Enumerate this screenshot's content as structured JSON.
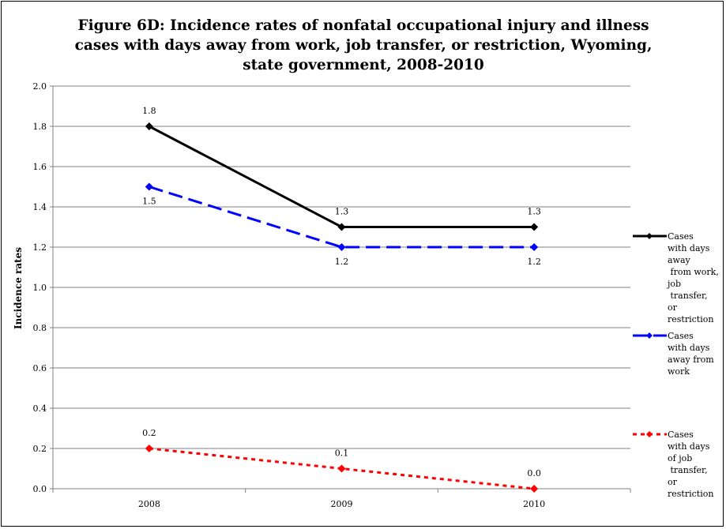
{
  "chart_data": {
    "type": "line",
    "title_lines": [
      "Figure 6D: Incidence rates of nonfatal occupational injury and illness",
      "cases with days away from work, job transfer, or restriction, Wyoming,",
      "state government, 2008-2010"
    ],
    "ylabel": "Incidence rates",
    "xlabel": "",
    "categories": [
      "2008",
      "2009",
      "2010"
    ],
    "ylim": [
      0,
      2.0
    ],
    "yticks": [
      "0.0",
      "0.2",
      "0.4",
      "0.6",
      "0.8",
      "1.0",
      "1.2",
      "1.4",
      "1.6",
      "1.8",
      "2.0"
    ],
    "grid": true,
    "legend_position": "right",
    "series": [
      {
        "name": "Cases with days away from work, job transfer, or restriction",
        "legend_lines": "Cases\nwith days\naway\n from work,\njob\n transfer,\nor\nrestriction",
        "values": [
          1.8,
          1.3,
          1.3
        ],
        "labels": [
          "1.8",
          "1.3",
          "1.3"
        ],
        "color": "#000000",
        "dash": "solid"
      },
      {
        "name": "Cases with days away from work",
        "legend_lines": "Cases\nwith days\naway from\nwork",
        "values": [
          1.5,
          1.2,
          1.2
        ],
        "labels": [
          "1.5",
          "1.2",
          "1.2"
        ],
        "color": "#0000ff",
        "dash": "dashed"
      },
      {
        "name": "Cases with days of job transfer, or restriction",
        "legend_lines": "Cases\nwith days\nof job\n transfer,\nor\nrestriction",
        "values": [
          0.2,
          0.1,
          0.0
        ],
        "labels": [
          "0.2",
          "0.1",
          "0.0"
        ],
        "color": "#ff0000",
        "dash": "dotted"
      }
    ]
  }
}
